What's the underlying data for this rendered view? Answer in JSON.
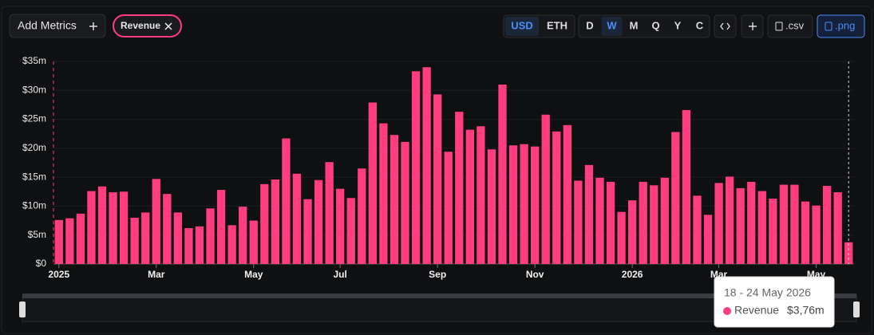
{
  "toolbar": {
    "add_metrics": "Add Metrics",
    "metric": "Revenue",
    "currencies": [
      "USD",
      "ETH"
    ],
    "intervals": [
      "D",
      "W",
      "M",
      "Q",
      "Y",
      "C"
    ],
    "exports": [
      ".csv",
      ".png"
    ]
  },
  "chart_data": {
    "type": "bar",
    "color": "#ff3d7f",
    "categories": [
      "2025",
      null,
      null,
      null,
      null,
      null,
      null,
      null,
      null,
      "Mar",
      null,
      null,
      null,
      null,
      null,
      null,
      null,
      null,
      "May",
      null,
      null,
      null,
      null,
      null,
      null,
      null,
      "Jul",
      null,
      null,
      null,
      null,
      null,
      null,
      null,
      null,
      "Sep",
      null,
      null,
      null,
      null,
      null,
      null,
      null,
      null,
      "Nov",
      null,
      null,
      null,
      null,
      null,
      null,
      null,
      null,
      "2026",
      null,
      null,
      null,
      null,
      null,
      null,
      null,
      "Mar",
      null,
      null,
      null,
      null,
      null,
      null,
      null,
      null,
      "May",
      null,
      null,
      null
    ],
    "series": [
      {
        "name": "Revenue",
        "color": "#ff3d7f",
        "values": [
          7.6,
          7.9,
          8.7,
          12.6,
          13.4,
          12.4,
          12.5,
          8.0,
          8.9,
          14.7,
          12.1,
          8.9,
          6.2,
          6.5,
          9.6,
          12.8,
          6.7,
          9.9,
          7.5,
          13.8,
          14.6,
          21.7,
          15.6,
          11.2,
          14.5,
          17.6,
          13.0,
          11.4,
          16.5,
          27.9,
          24.3,
          22.3,
          21.1,
          33.3,
          34.0,
          29.3,
          19.4,
          26.3,
          23.2,
          23.8,
          19.8,
          31.0,
          20.5,
          20.7,
          20.3,
          25.8,
          22.9,
          24.0,
          14.4,
          17.1,
          14.9,
          14.2,
          9.0,
          11.0,
          14.2,
          13.6,
          14.9,
          22.8,
          26.6,
          11.8,
          8.5,
          14.0,
          15.1,
          13.1,
          14.2,
          12.6,
          11.3,
          13.7,
          13.7,
          10.8,
          10.1,
          13.5,
          12.4,
          3.76
        ],
        "value_labels": [
          null,
          null,
          null,
          null,
          null,
          null,
          null,
          null,
          null,
          null,
          null,
          null,
          null,
          null,
          null,
          null,
          null,
          null,
          null,
          null,
          null,
          null,
          null,
          null,
          null,
          null,
          null,
          null,
          null,
          null,
          null,
          null,
          null,
          null,
          null,
          null,
          null,
          null,
          null,
          null,
          null,
          null,
          null,
          null,
          null,
          null,
          null,
          null,
          null,
          null,
          null,
          null,
          null,
          null,
          null,
          null,
          null,
          null,
          null,
          null,
          null,
          null,
          null,
          null,
          null,
          null,
          null,
          null,
          null,
          null,
          null,
          null,
          null,
          "$3,76m"
        ]
      }
    ],
    "tooltip": {
      "title": "18 - 24 May 2026"
    },
    "ylim": [
      0,
      35
    ],
    "yticks": [
      {
        "value": 0,
        "label": "$0"
      },
      {
        "value": 5,
        "label": "$5m"
      },
      {
        "value": 10,
        "label": "$10m"
      },
      {
        "value": 15,
        "label": "$15m"
      },
      {
        "value": 20,
        "label": "$20m"
      },
      {
        "value": 25,
        "label": "$25m"
      },
      {
        "value": 30,
        "label": "$30m"
      },
      {
        "value": 35,
        "label": "$35m"
      }
    ],
    "grid": true
  }
}
